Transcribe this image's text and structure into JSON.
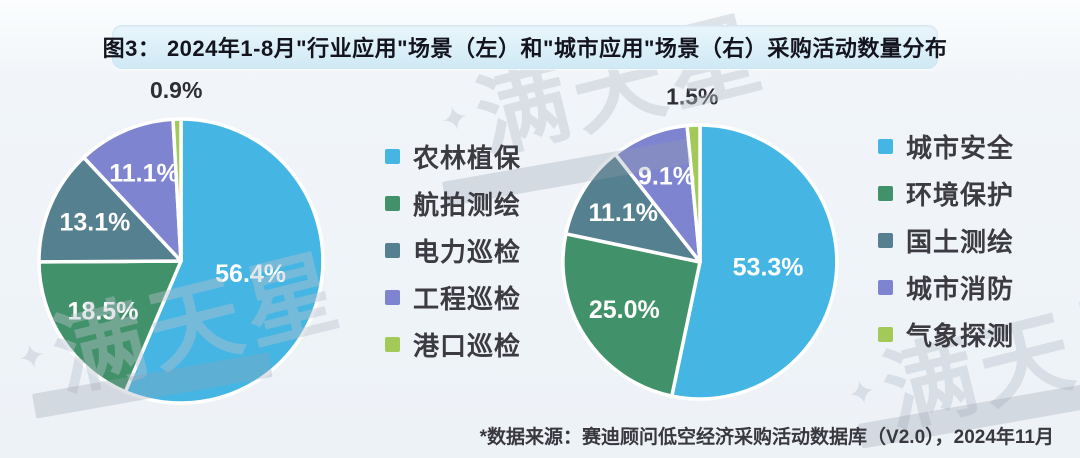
{
  "title": {
    "text": "图3： 2024年1-8月\"行业应用\"场景（左）和\"城市应用\"场景（右）采购活动数量分布"
  },
  "source_note": "*数据来源：赛迪顾问低空经济采购活动数据库（V2.0），2024年11月",
  "watermark": {
    "text": "满天星",
    "star": "✦"
  },
  "colors": {
    "title_bar_bg": "#CFE9F5",
    "background": "#EDF2F7",
    "slice_blue": "#45B6E4",
    "slice_green": "#41926A",
    "slice_steel": "#55808F",
    "slice_purple": "#7E84CF",
    "slice_yellowgreen": "#A3C959"
  },
  "chart_data": [
    {
      "type": "pie",
      "name": "industry-application",
      "position": "left",
      "labels": [
        "农林植保",
        "航拍测绘",
        "电力巡检",
        "工程巡检",
        "港口巡检"
      ],
      "values": [
        56.4,
        18.5,
        13.1,
        11.1,
        0.9
      ],
      "value_labels": [
        "56.4%",
        "18.5%",
        "13.1%",
        "11.1%",
        "0.9%"
      ],
      "colors": [
        "#45B6E4",
        "#41926A",
        "#55808F",
        "#7E84CF",
        "#A3C959"
      ],
      "start_angle_deg": 0,
      "direction": "clockwise",
      "legend_position": "right-of-pie",
      "value_suffix": "%"
    },
    {
      "type": "pie",
      "name": "city-application",
      "position": "right",
      "labels": [
        "城市安全",
        "环境保护",
        "国土测绘",
        "城市消防",
        "气象探测"
      ],
      "values": [
        53.3,
        25.0,
        11.1,
        9.1,
        1.5
      ],
      "value_labels": [
        "53.3%",
        "25.0%",
        "11.1%",
        "9.1%",
        "1.5%"
      ],
      "colors": [
        "#45B6E4",
        "#41926A",
        "#55808F",
        "#7E84CF",
        "#A3C959"
      ],
      "start_angle_deg": 0,
      "direction": "clockwise",
      "legend_position": "right-of-pie",
      "value_suffix": "%"
    }
  ]
}
